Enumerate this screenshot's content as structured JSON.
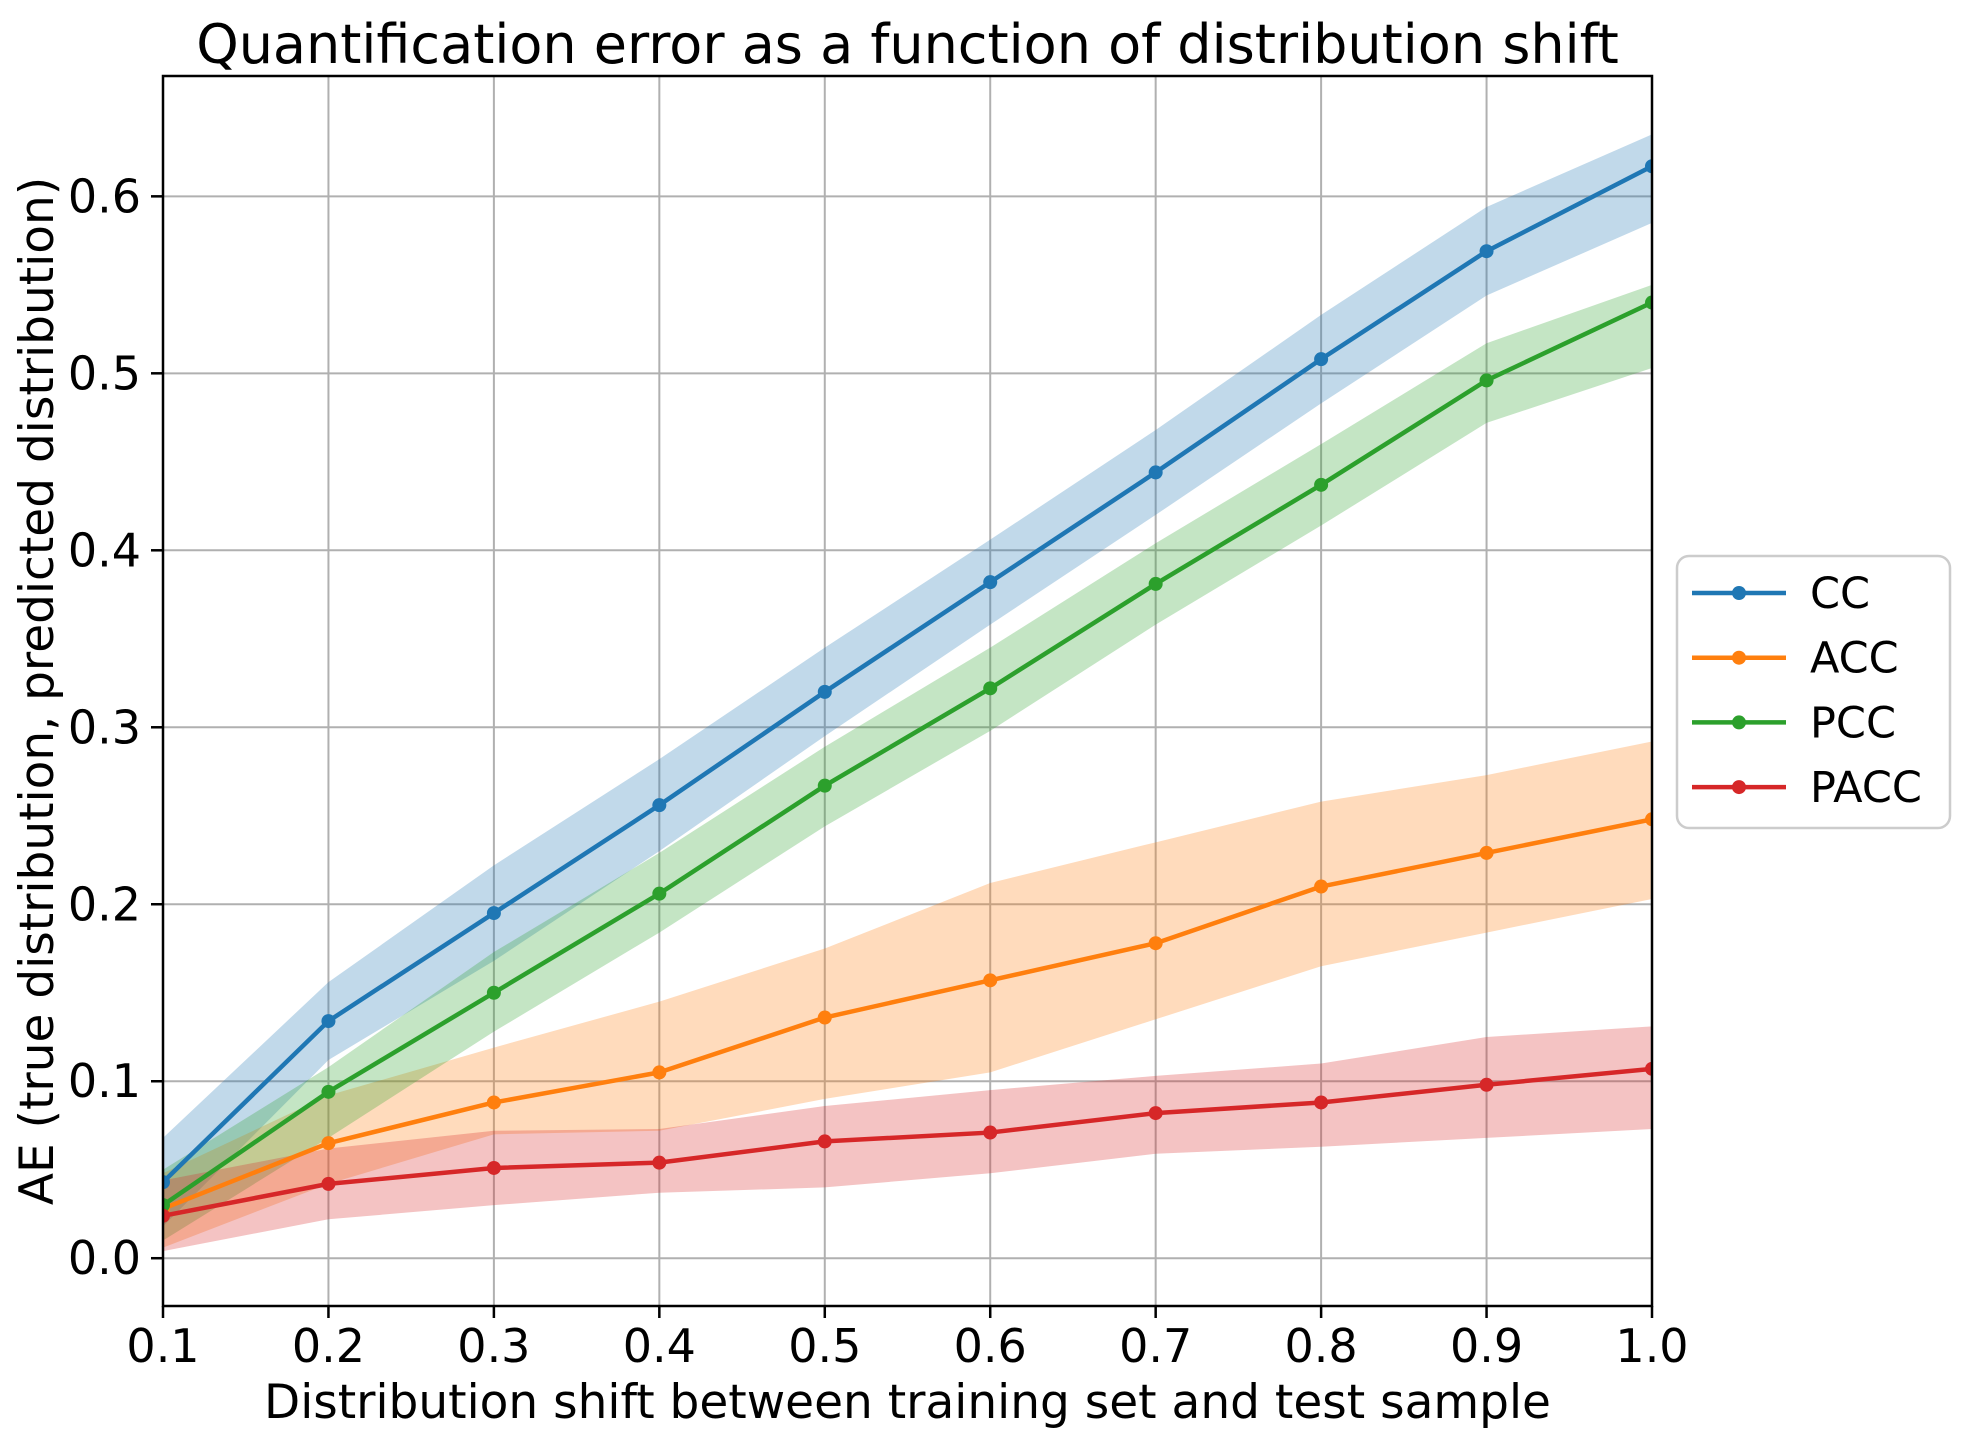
{
  "chart_data": {
    "type": "line",
    "title": "Quantification error as a function of distribution shift",
    "xlabel": "Distribution shift between training set and test sample",
    "ylabel": "AE (true distribution, predicted distribution)",
    "x": [
      0.1,
      0.2,
      0.3,
      0.4,
      0.5,
      0.6,
      0.7,
      0.8,
      0.9,
      1.0
    ],
    "x_tick_labels": [
      "0.1",
      "0.2",
      "0.3",
      "0.4",
      "0.5",
      "0.6",
      "0.7",
      "0.8",
      "0.9",
      "1.0"
    ],
    "y_ticks": [
      0.0,
      0.1,
      0.2,
      0.3,
      0.4,
      0.5,
      0.6
    ],
    "y_tick_labels": [
      "0.0",
      "0.1",
      "0.2",
      "0.3",
      "0.4",
      "0.5",
      "0.6"
    ],
    "xlim": [
      0.1,
      1.0
    ],
    "ylim": [
      -0.027,
      0.668
    ],
    "grid": true,
    "grid_color": "#b0b0b0",
    "spine_color": "#000000",
    "background": "#ffffff",
    "band_alpha": 0.28,
    "legend_position": "outside-center-right",
    "legend_border_color": "#cccccc",
    "series": [
      {
        "name": "CC",
        "color": "#1f77b4",
        "values": [
          0.043,
          0.134,
          0.195,
          0.256,
          0.32,
          0.382,
          0.444,
          0.508,
          0.569,
          0.617
        ],
        "band_low": [
          0.018,
          0.112,
          0.168,
          0.23,
          0.295,
          0.358,
          0.42,
          0.483,
          0.544,
          0.585
        ],
        "band_high": [
          0.068,
          0.156,
          0.222,
          0.282,
          0.345,
          0.406,
          0.468,
          0.533,
          0.594,
          0.635
        ]
      },
      {
        "name": "ACC",
        "color": "#ff7f0e",
        "values": [
          0.028,
          0.065,
          0.088,
          0.105,
          0.136,
          0.157,
          0.178,
          0.21,
          0.229,
          0.248
        ],
        "band_low": [
          0.006,
          0.042,
          0.07,
          0.072,
          0.09,
          0.105,
          0.135,
          0.165,
          0.184,
          0.203
        ],
        "band_high": [
          0.048,
          0.092,
          0.119,
          0.145,
          0.175,
          0.212,
          0.235,
          0.258,
          0.273,
          0.292
        ]
      },
      {
        "name": "PCC",
        "color": "#2ca02c",
        "values": [
          0.03,
          0.094,
          0.15,
          0.206,
          0.267,
          0.322,
          0.381,
          0.437,
          0.496,
          0.54
        ],
        "band_low": [
          0.01,
          0.068,
          0.128,
          0.184,
          0.244,
          0.298,
          0.358,
          0.414,
          0.472,
          0.503
        ],
        "band_high": [
          0.05,
          0.108,
          0.173,
          0.229,
          0.289,
          0.345,
          0.404,
          0.46,
          0.517,
          0.55
        ]
      },
      {
        "name": "PACC",
        "color": "#d62728",
        "values": [
          0.024,
          0.042,
          0.051,
          0.054,
          0.066,
          0.071,
          0.082,
          0.088,
          0.098,
          0.107
        ],
        "band_low": [
          0.004,
          0.022,
          0.03,
          0.037,
          0.04,
          0.048,
          0.059,
          0.063,
          0.068,
          0.073
        ],
        "band_high": [
          0.044,
          0.062,
          0.072,
          0.073,
          0.086,
          0.095,
          0.103,
          0.11,
          0.125,
          0.131
        ]
      }
    ]
  }
}
